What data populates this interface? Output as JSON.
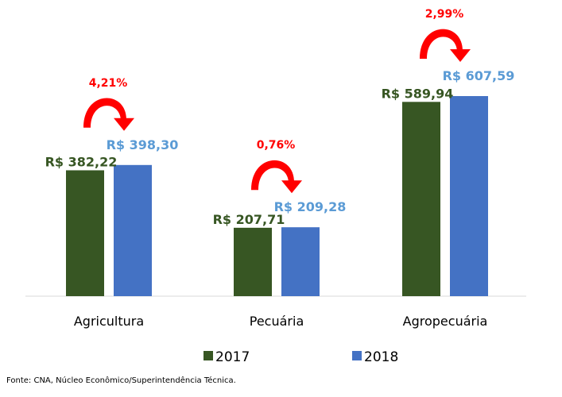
{
  "chart_data": {
    "type": "bar",
    "title": "",
    "xlabel": "",
    "ylabel": "",
    "ylim": [
      0,
      607.59
    ],
    "grid": false,
    "categories": [
      "Agricultura",
      "Pecuária",
      "Agropecuária"
    ],
    "series": [
      {
        "name": "2017",
        "color": "#375623",
        "values": [
          382.22,
          207.71,
          589.94
        ],
        "labels": [
          "R$ 382,22",
          "R$ 207,71",
          "R$ 589,94"
        ]
      },
      {
        "name": "2018",
        "color": "#4472c4",
        "label_color": "#5b9bd5",
        "values": [
          398.3,
          209.28,
          607.59
        ],
        "labels": [
          "R$ 398,30",
          "R$ 209,28",
          "R$ 607,59"
        ]
      }
    ],
    "annotations": [
      {
        "category": "Agricultura",
        "text": "4,21%"
      },
      {
        "category": "Pecuária",
        "text": "0,76%"
      },
      {
        "category": "Agropecuária",
        "text": "2,99%"
      }
    ],
    "legend_position": "bottom",
    "arrow_color": "#ff0000"
  },
  "source_note": "Fonte: CNA, Núcleo Econômico/Superintendência Técnica."
}
